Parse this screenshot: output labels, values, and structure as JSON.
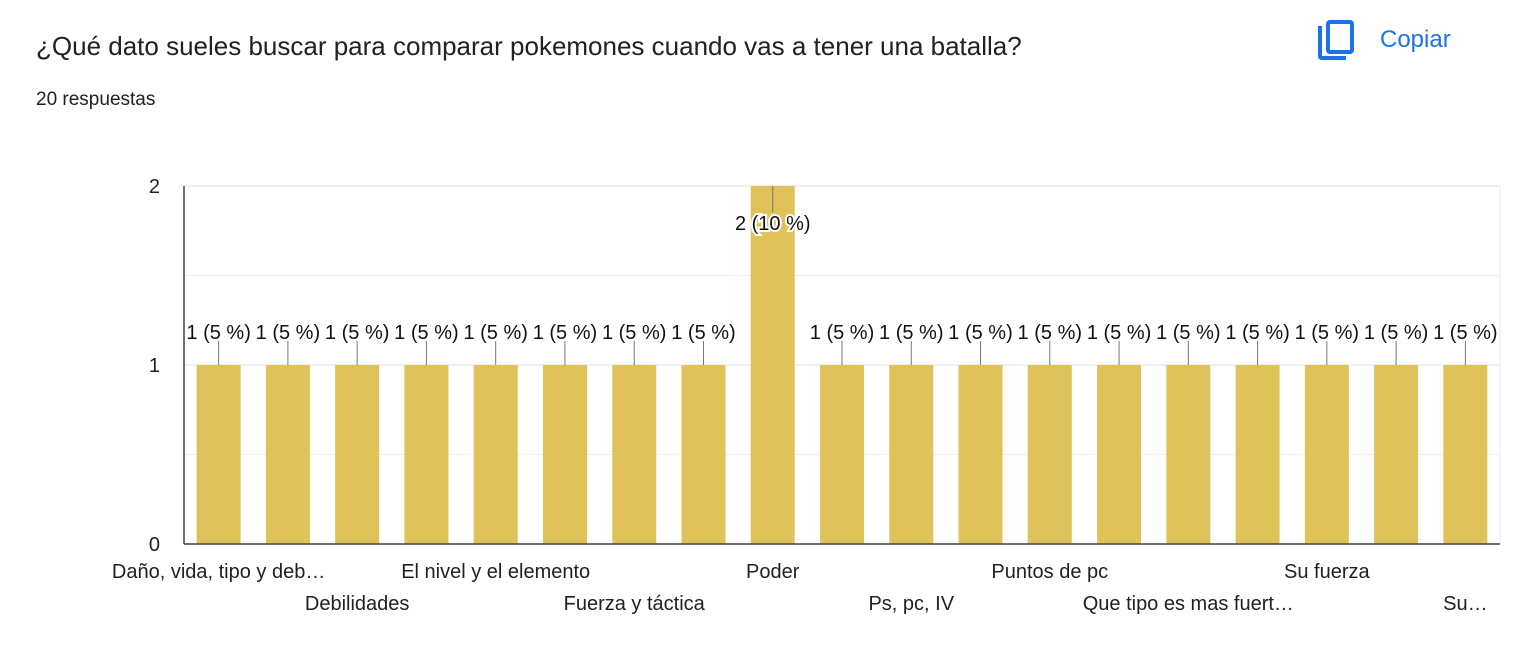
{
  "header": {
    "question": "¿Qué dato sueles buscar para comparar pokemones cuando vas a tener una batalla?",
    "responses": "20 respuestas",
    "copy_label": "Copiar",
    "copy_icon": "copy-icon"
  },
  "colors": {
    "bar": "#dfc25a",
    "accent": "#1a73e8",
    "grid": "#e8e8e8",
    "axis": "#333333",
    "text": "#202124"
  },
  "chart_data": {
    "type": "bar",
    "ylim": [
      0,
      2
    ],
    "y_ticks": [
      "0",
      "1",
      "2"
    ],
    "grid": true,
    "values": [
      1,
      1,
      1,
      1,
      1,
      1,
      1,
      1,
      2,
      1,
      1,
      1,
      1,
      1,
      1,
      1,
      1,
      1,
      1
    ],
    "data_labels": [
      "1 (5 %)",
      "1 (5 %)",
      "1 (5 %)",
      "1 (5 %)",
      "1 (5 %)",
      "1 (5 %)",
      "1 (5 %)",
      "1 (5 %)",
      "2 (10 %)",
      "1 (5 %)",
      "1 (5 %)",
      "1 (5 %)",
      "1 (5 %)",
      "1 (5 %)",
      "1 (5 %)",
      "1 (5 %)",
      "1 (5 %)",
      "1 (5 %)",
      "1 (5 %)"
    ],
    "x_tick_labels": [
      {
        "index": 0,
        "row": 1,
        "text": "Daño, vida, tipo y deb…"
      },
      {
        "index": 2,
        "row": 2,
        "text": "Debilidades"
      },
      {
        "index": 4,
        "row": 1,
        "text": "El nivel y el elemento"
      },
      {
        "index": 6,
        "row": 2,
        "text": "Fuerza y táctica"
      },
      {
        "index": 8,
        "row": 1,
        "text": "Poder"
      },
      {
        "index": 10,
        "row": 2,
        "text": "Ps, pc, IV"
      },
      {
        "index": 12,
        "row": 1,
        "text": "Puntos de pc"
      },
      {
        "index": 14,
        "row": 2,
        "text": "Que tipo es mas fuert…"
      },
      {
        "index": 16,
        "row": 1,
        "text": "Su fuerza"
      },
      {
        "index": 18,
        "row": 2,
        "text": "Su…"
      }
    ]
  }
}
